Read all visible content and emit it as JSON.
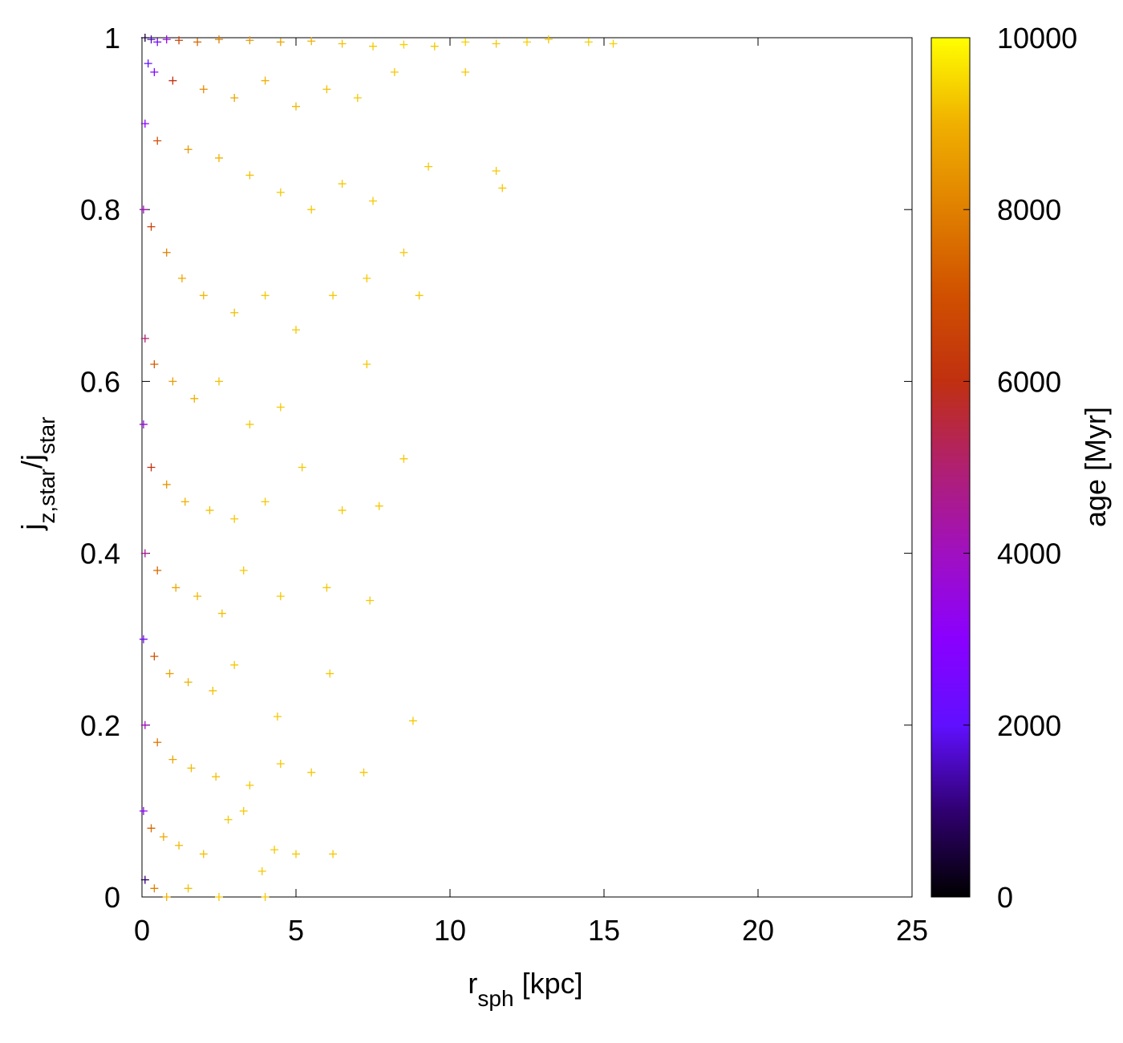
{
  "chart_data": {
    "type": "scatter",
    "x_label": [
      {
        "text": "r"
      },
      {
        "text": "sph",
        "sub": true
      },
      {
        "text": " [kpc]"
      }
    ],
    "y_label": [
      {
        "text": "j"
      },
      {
        "text": "z,star",
        "sub": true
      },
      {
        "text": "/j"
      },
      {
        "text": "star",
        "sub": true
      }
    ],
    "colorbar_label": "age [Myr]",
    "xlim": [
      0,
      25
    ],
    "xticks": [
      0,
      5,
      10,
      15,
      20,
      25
    ],
    "ylim": [
      0,
      1
    ],
    "yticks": [
      0,
      0.2,
      0.4,
      0.6,
      0.8,
      1
    ],
    "clim": [
      0,
      10000
    ],
    "cticks": [
      0,
      2000,
      4000,
      6000,
      8000,
      10000
    ],
    "marker": "+",
    "colormap": [
      {
        "value": 0,
        "color": "#000000"
      },
      {
        "value": 1000,
        "color": "#300070"
      },
      {
        "value": 2000,
        "color": "#6010ff"
      },
      {
        "value": 3000,
        "color": "#8a00ff"
      },
      {
        "value": 4000,
        "color": "#a010c0"
      },
      {
        "value": 5000,
        "color": "#b02070"
      },
      {
        "value": 6000,
        "color": "#c03010"
      },
      {
        "value": 7000,
        "color": "#d05000"
      },
      {
        "value": 8000,
        "color": "#e08000"
      },
      {
        "value": 9000,
        "color": "#f0b000"
      },
      {
        "value": 10000,
        "color": "#ffff00"
      }
    ],
    "points": {
      "x": [
        0.1,
        0.3,
        0.5,
        0.8,
        1.2,
        1.8,
        2.5,
        3.5,
        4.5,
        5.5,
        6.5,
        7.5,
        8.5,
        9.5,
        10.5,
        11.5,
        12.5,
        13.2,
        14.5,
        15.3,
        0.2,
        0.4,
        1,
        2,
        3,
        4,
        5,
        6,
        7,
        8.2,
        9.3,
        10.5,
        11.5,
        11.7,
        0.1,
        0.5,
        1.5,
        2.5,
        3.5,
        4.5,
        5.5,
        6.5,
        7.5,
        8.5,
        0.05,
        0.3,
        0.8,
        1.3,
        2,
        3,
        4,
        5,
        6.2,
        7.3,
        9,
        0.1,
        0.4,
        1,
        1.7,
        2.5,
        3.5,
        4.5,
        5.2,
        7.3,
        8.5,
        0.05,
        0.3,
        0.8,
        1.4,
        2.2,
        3,
        4,
        6.5,
        7.7,
        0.1,
        0.5,
        1.1,
        1.8,
        2.6,
        3.3,
        4.5,
        6,
        7.4,
        0.05,
        0.4,
        0.9,
        1.5,
        2.3,
        3,
        4.4,
        6.1,
        8.8,
        0.1,
        0.5,
        1,
        1.6,
        2.4,
        3.5,
        4.5,
        5.5,
        7.2,
        0.05,
        0.3,
        0.7,
        1.2,
        2,
        2.8,
        3.3,
        4.3,
        6.2,
        5,
        0.1,
        0.4,
        0.8,
        1.5,
        2.5,
        3.9,
        4
      ],
      "y": [
        1,
        0.998,
        0.995,
        0.998,
        0.997,
        0.995,
        0.998,
        0.997,
        0.995,
        0.996,
        0.993,
        0.99,
        0.992,
        0.99,
        0.995,
        0.993,
        0.995,
        0.998,
        0.995,
        0.993,
        0.97,
        0.96,
        0.95,
        0.94,
        0.93,
        0.95,
        0.92,
        0.94,
        0.93,
        0.96,
        0.85,
        0.96,
        0.845,
        0.825,
        0.9,
        0.88,
        0.87,
        0.86,
        0.84,
        0.82,
        0.8,
        0.83,
        0.81,
        0.75,
        0.8,
        0.78,
        0.75,
        0.72,
        0.7,
        0.68,
        0.7,
        0.66,
        0.7,
        0.72,
        0.7,
        0.65,
        0.62,
        0.6,
        0.58,
        0.6,
        0.55,
        0.57,
        0.5,
        0.62,
        0.51,
        0.55,
        0.5,
        0.48,
        0.46,
        0.45,
        0.44,
        0.46,
        0.45,
        0.455,
        0.4,
        0.38,
        0.36,
        0.35,
        0.33,
        0.38,
        0.35,
        0.36,
        0.345,
        0.3,
        0.28,
        0.26,
        0.25,
        0.24,
        0.27,
        0.21,
        0.26,
        0.205,
        0.2,
        0.18,
        0.16,
        0.15,
        0.14,
        0.13,
        0.155,
        0.145,
        0.145,
        0.1,
        0.08,
        0.07,
        0.06,
        0.05,
        0.09,
        0.1,
        0.055,
        0.05,
        0.05,
        0.02,
        0.01,
        0,
        0.01,
        0,
        0.03,
        0
      ],
      "c": [
        500,
        1500,
        2500,
        3500,
        6500,
        7500,
        8000,
        8500,
        8800,
        9000,
        9200,
        9300,
        9400,
        9300,
        9400,
        9300,
        9400,
        9300,
        9400,
        9400,
        2000,
        2800,
        6000,
        8200,
        8800,
        9000,
        9100,
        9200,
        9300,
        9300,
        9300,
        9300,
        9300,
        9300,
        3000,
        7000,
        8500,
        9000,
        9200,
        9300,
        9300,
        9300,
        9300,
        9300,
        4000,
        6500,
        8000,
        8800,
        9100,
        9200,
        9300,
        9300,
        9300,
        9300,
        9300,
        5000,
        7200,
        8600,
        9000,
        9200,
        9300,
        9300,
        9300,
        9300,
        9300,
        3500,
        6000,
        8400,
        9000,
        9200,
        9300,
        9300,
        9300,
        9300,
        4500,
        7500,
        8800,
        9100,
        9200,
        9300,
        9300,
        9300,
        9300,
        2500,
        7000,
        8700,
        9000,
        9200,
        9300,
        9300,
        9300,
        9300,
        4000,
        7800,
        8800,
        9100,
        9200,
        9300,
        9300,
        9300,
        9300,
        3000,
        7500,
        8800,
        9100,
        9200,
        9300,
        9300,
        9300,
        9300,
        9300,
        1000,
        8000,
        9000,
        9200,
        9300,
        9300,
        9300
      ]
    }
  }
}
